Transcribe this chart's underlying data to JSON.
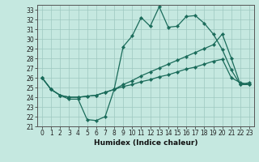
{
  "title": "",
  "xlabel": "Humidex (Indice chaleur)",
  "ylabel": "",
  "bg_color": "#c5e8e0",
  "line_color": "#1a6b5a",
  "grid_color": "#9dc8bf",
  "xlim": [
    -0.5,
    23.5
  ],
  "ylim": [
    21,
    33.5
  ],
  "yticks": [
    21,
    22,
    23,
    24,
    25,
    26,
    27,
    28,
    29,
    30,
    31,
    32,
    33
  ],
  "xticks": [
    0,
    1,
    2,
    3,
    4,
    5,
    6,
    7,
    8,
    9,
    10,
    11,
    12,
    13,
    14,
    15,
    16,
    17,
    18,
    19,
    20,
    21,
    22,
    23
  ],
  "line1_x": [
    0,
    1,
    2,
    3,
    4,
    5,
    6,
    7,
    8,
    9,
    10,
    11,
    12,
    13,
    14,
    15,
    16,
    17,
    18,
    19,
    20,
    21,
    22,
    23
  ],
  "line1_y": [
    26.0,
    24.8,
    24.2,
    23.8,
    23.8,
    21.7,
    21.6,
    22.0,
    24.8,
    29.2,
    30.3,
    32.2,
    31.3,
    33.3,
    31.2,
    31.3,
    32.3,
    32.4,
    31.6,
    30.5,
    28.9,
    26.8,
    25.3,
    25.5
  ],
  "line2_x": [
    0,
    1,
    2,
    3,
    4,
    5,
    6,
    7,
    8,
    9,
    10,
    11,
    12,
    13,
    14,
    15,
    16,
    17,
    18,
    19,
    20,
    21,
    22,
    23
  ],
  "line2_y": [
    26.0,
    24.8,
    24.2,
    24.0,
    24.0,
    24.1,
    24.2,
    24.5,
    24.8,
    25.1,
    25.3,
    25.6,
    25.8,
    26.1,
    26.3,
    26.6,
    26.9,
    27.1,
    27.4,
    27.7,
    27.9,
    26.0,
    25.5,
    25.3
  ],
  "line3_x": [
    0,
    1,
    2,
    3,
    4,
    5,
    6,
    7,
    8,
    9,
    10,
    11,
    12,
    13,
    14,
    15,
    16,
    17,
    18,
    19,
    20,
    21,
    22,
    23
  ],
  "line3_y": [
    26.0,
    24.8,
    24.2,
    24.0,
    24.0,
    24.1,
    24.2,
    24.5,
    24.8,
    25.3,
    25.7,
    26.2,
    26.6,
    27.0,
    27.4,
    27.8,
    28.2,
    28.6,
    29.0,
    29.4,
    30.5,
    28.0,
    25.3,
    25.3
  ],
  "tick_fontsize": 5.5,
  "xlabel_fontsize": 6.5
}
